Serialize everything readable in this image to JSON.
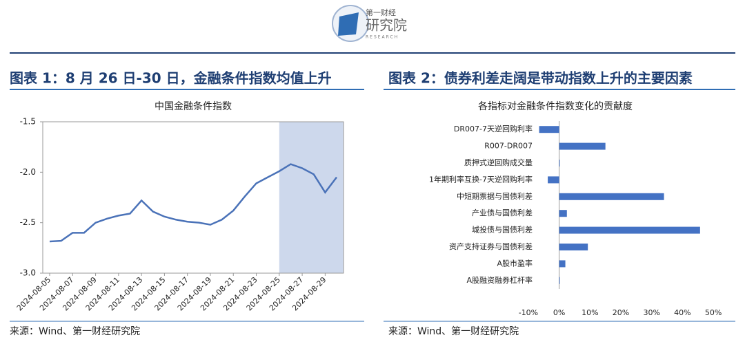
{
  "logo": {
    "brand": "第一财经",
    "unit": "研究院",
    "english": "RESEARCH"
  },
  "figures": [
    {
      "heading": "图表 1：8 月 26 日-30 日，金融条件指数均值上升",
      "source": "来源：Wind、第一财经研究院"
    },
    {
      "heading": "图表 2：债券利差走阔是带动指数上升的主要因素",
      "source": "来源：Wind、第一财经研究院"
    }
  ],
  "chart_data": [
    {
      "type": "line",
      "title": "中国金融条件指数",
      "color": "#4a72b8",
      "shade_color": "#cdd8ec",
      "categories": [
        "2024-08-05",
        null,
        "2024-08-07",
        null,
        "2024-08-09",
        null,
        "2024-08-11",
        null,
        "2024-08-13",
        null,
        "2024-08-15",
        null,
        "2024-08-17",
        null,
        "2024-08-19",
        null,
        "2024-08-21",
        null,
        "2024-08-23",
        null,
        "2024-08-25",
        null,
        "2024-08-27",
        null,
        "2024-08-29",
        null
      ],
      "values": [
        -2.686,
        -2.68,
        -2.6,
        -2.6,
        -2.5,
        -2.46,
        -2.43,
        -2.41,
        -2.28,
        -2.39,
        -2.44,
        -2.47,
        -2.49,
        -2.5,
        -2.52,
        -2.47,
        -2.38,
        -2.24,
        -2.11,
        -2.05,
        -1.99,
        -1.92,
        -1.96,
        -2.02,
        -2.2,
        -2.05
      ],
      "ylim": [
        -3.0,
        -1.5
      ],
      "yticks": [
        -1.5,
        {
          "value": -2,
          "label": "-2.0"
        },
        -2.5,
        {
          "value": -3,
          "label": "-3.0"
        }
      ],
      "grid": false
    },
    {
      "type": "hbar",
      "title": "各指标对金融条件指数变化的贡献度",
      "color": "#4472c4",
      "categories": [
        "DR007-7天逆回购利率",
        "R007-DR007",
        "质押式逆回购成交量",
        "1年期利率互换-7天逆回购利率",
        "中短期票据与国债利差",
        "产业债与国债利差",
        "城投债与国债利差",
        "资产支持证券与国债利差",
        "A股市盈率",
        "A股融资融券杠杆率"
      ],
      "values": [
        -6.5,
        15,
        0.2,
        -3.7,
        34,
        2.5,
        45.7,
        9.3,
        2,
        0.2
      ],
      "xlim": [
        -12,
        52
      ],
      "xticks": [
        {
          "value": -10,
          "label": "-10%"
        },
        {
          "value": 0,
          "label": "0%"
        },
        {
          "value": 10,
          "label": "10%"
        },
        {
          "value": 20,
          "label": "20%"
        },
        {
          "value": 30,
          "label": "30%"
        },
        {
          "value": 40,
          "label": "40%"
        },
        {
          "value": 50,
          "label": "50%"
        }
      ],
      "grid": false
    }
  ]
}
